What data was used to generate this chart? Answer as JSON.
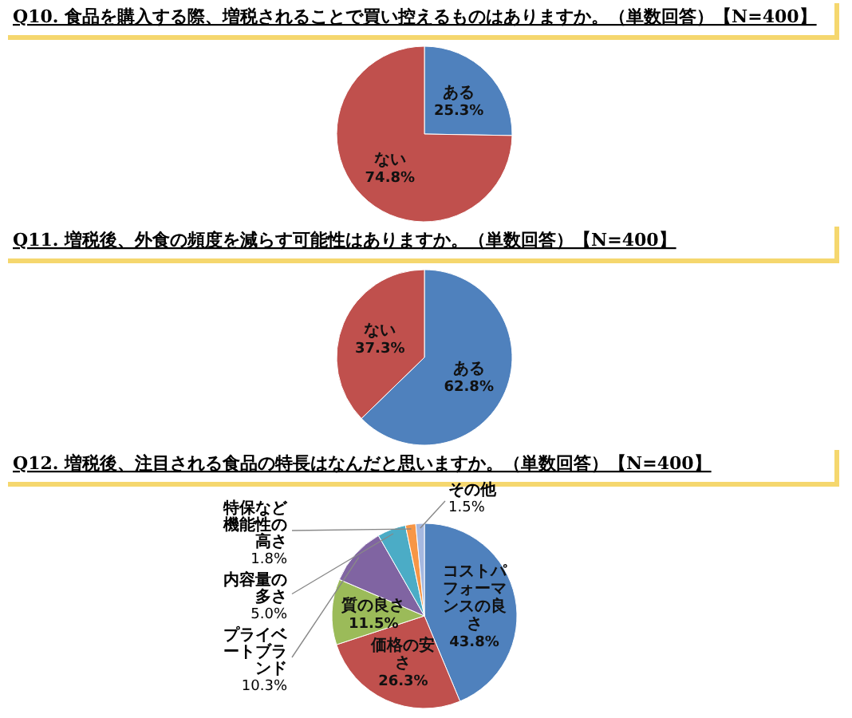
{
  "chart_data": [
    {
      "type": "pie",
      "title": "Q10. 食品を購入する際、増税されることで買い控えるものはありますか。（単数回答）【N=400】",
      "categories": [
        "ある",
        "ない"
      ],
      "values": [
        25.3,
        74.8
      ],
      "value_labels": [
        "25.3%",
        "74.8%"
      ],
      "colors": [
        "#4f81bd",
        "#c0504d"
      ],
      "legend": false
    },
    {
      "type": "pie",
      "title": "Q11. 増税後、外食の頻度を減らす可能性はありますか。（単数回答）【N=400】",
      "categories": [
        "ある",
        "ない"
      ],
      "values": [
        62.8,
        37.3
      ],
      "value_labels": [
        "62.8%",
        "37.3%"
      ],
      "colors": [
        "#4f81bd",
        "#c0504d"
      ],
      "legend": false
    },
    {
      "type": "pie",
      "title": "Q12. 増税後、注目される食品の特長はなんだと思いますか。（単数回答）【N=400】",
      "categories": [
        "コストパフォーマンスの良さ",
        "価格の安さ",
        "質の良さ",
        "プライベートブランド",
        "内容量の多さ",
        "特保など機能性の高さ",
        "その他"
      ],
      "values": [
        43.8,
        26.3,
        11.5,
        10.3,
        5.0,
        1.8,
        1.5
      ],
      "value_labels": [
        "43.8%",
        "26.3%",
        "11.5%",
        "10.3%",
        "5.0%",
        "1.8%",
        "1.5%"
      ],
      "colors": [
        "#4f81bd",
        "#c0504d",
        "#9bbb59",
        "#8064a2",
        "#4bacc6",
        "#f79646",
        "#a5b8e0"
      ],
      "legend": false
    }
  ]
}
